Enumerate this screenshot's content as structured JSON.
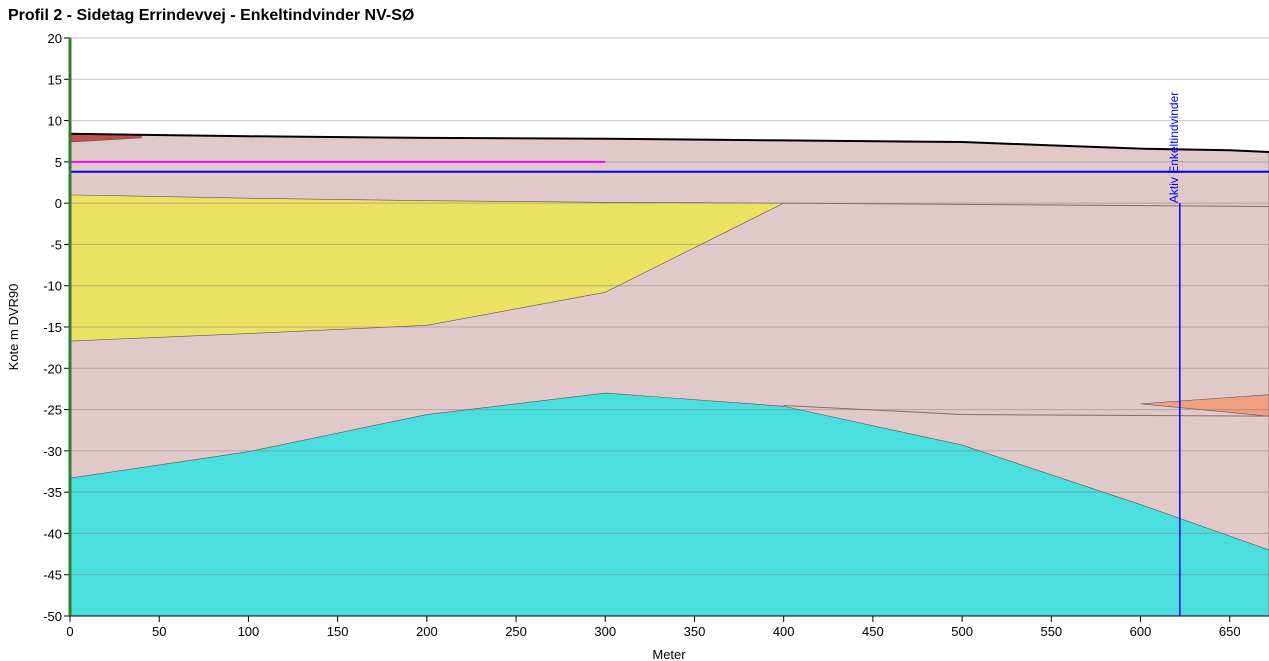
{
  "chart_data": {
    "type": "area",
    "title": "Profil 2 - Sidetag Errindevvej - Enkeltindvinder NV-SØ",
    "xlabel": "Meter",
    "ylabel": "Kote m DVR90",
    "xlim": [
      0,
      672
    ],
    "ylim": [
      -50,
      20
    ],
    "xticks": [
      0,
      50,
      100,
      150,
      200,
      250,
      300,
      350,
      400,
      450,
      500,
      550,
      600,
      650
    ],
    "yticks": [
      -50,
      -45,
      -40,
      -35,
      -30,
      -25,
      -20,
      -15,
      -10,
      -5,
      0,
      5,
      10,
      15,
      20
    ],
    "grid": true,
    "areas": [
      {
        "color": "#e2c9c9",
        "x": [
          0,
          100,
          200,
          300,
          400,
          500,
          550,
          600,
          650,
          672
        ],
        "upper": [
          8.4,
          8.1,
          7.9,
          7.8,
          7.6,
          7.4,
          7.0,
          6.6,
          6.4,
          6.2
        ],
        "lower": [
          -50,
          -50,
          -50,
          -50,
          -50,
          -50,
          -50,
          -50,
          -50,
          -50
        ]
      },
      {
        "color": "#c0504d",
        "x": [
          0,
          40
        ],
        "upper": [
          8.4,
          8.3
        ],
        "lower": [
          7.4,
          7.9
        ]
      },
      {
        "color": "#ebe264",
        "x": [
          0,
          100,
          200,
          300,
          400
        ],
        "upper": [
          1.0,
          0.6,
          0.3,
          0.1,
          0.0
        ],
        "lower": [
          -16.7,
          -15.8,
          -14.8,
          -10.8,
          0.0
        ]
      },
      {
        "color": "#4bdede",
        "x": [
          0,
          100,
          200,
          300,
          400,
          500,
          600,
          672
        ],
        "upper": [
          -33.3,
          -30.1,
          -25.6,
          -23.0,
          -24.6,
          -29.3,
          -36.5,
          -42.0
        ],
        "lower": [
          -50,
          -50,
          -50,
          -50,
          -50,
          -50,
          -50,
          -50
        ]
      },
      {
        "color": "#f0a080",
        "x": [
          600,
          672
        ],
        "upper": [
          -24.3,
          -23.2
        ],
        "lower": [
          -24.3,
          -25.8
        ]
      }
    ],
    "lines": [
      {
        "color": "#000000",
        "width": 2,
        "x": [
          0,
          100,
          200,
          300,
          400,
          500,
          550,
          600,
          650,
          672
        ],
        "values": [
          8.4,
          8.1,
          7.9,
          7.8,
          7.6,
          7.4,
          7.0,
          6.6,
          6.4,
          6.2
        ]
      },
      {
        "color": "#8a6a6a",
        "width": 1,
        "x": [
          400,
          672
        ],
        "values": [
          0.0,
          -0.4
        ]
      },
      {
        "color": "#8a6a6a",
        "width": 1,
        "x": [
          400,
          500,
          672
        ],
        "values": [
          -24.5,
          -25.6,
          -25.8
        ]
      },
      {
        "color": "#ff00ff",
        "width": 2,
        "x": [
          0,
          300
        ],
        "values": [
          5.0,
          5.0
        ]
      },
      {
        "color": "#0000dd",
        "width": 2,
        "x": [
          0,
          672
        ],
        "values": [
          3.8,
          3.8
        ]
      }
    ],
    "annotation": {
      "text": "Aktiv Enkeltindvinder",
      "x": 622,
      "color": "#0000ff"
    }
  }
}
